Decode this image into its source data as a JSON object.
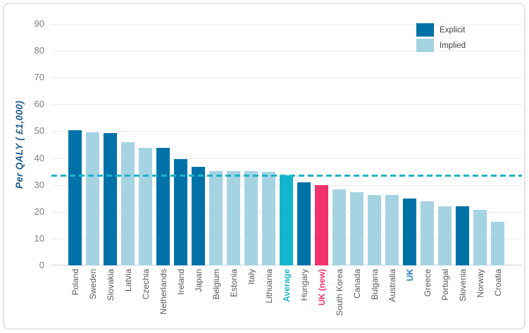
{
  "chart_data": {
    "type": "bar",
    "ylabel": "Per QALY ( £1,000)",
    "ylim": [
      0,
      90
    ],
    "ytick_step": 10,
    "grid": true,
    "legend_position": "top-right",
    "legend": [
      {
        "label": "Explicit",
        "color": "#0072a8"
      },
      {
        "label": "Implied",
        "color": "#a5d3e2"
      }
    ],
    "average_line": {
      "value": 33.6,
      "color": "#1cb4cb",
      "style": "dashed"
    },
    "bar_colors": {
      "explicit": "#0072a8",
      "implied": "#a5d3e2",
      "average": "#12b5cc",
      "highlight": "#f0316c"
    },
    "default_label_color": "#595959",
    "bars": [
      {
        "label": "Poland",
        "value": 50.5,
        "type": "explicit"
      },
      {
        "label": "Sweden",
        "value": 49.5,
        "type": "implied"
      },
      {
        "label": "Slovakia",
        "value": 49.3,
        "type": "explicit"
      },
      {
        "label": "Latvia",
        "value": 46.0,
        "type": "implied"
      },
      {
        "label": "Czechia",
        "value": 43.8,
        "type": "implied"
      },
      {
        "label": "Netherlands",
        "value": 43.8,
        "type": "explicit"
      },
      {
        "label": "Ireland",
        "value": 39.5,
        "type": "explicit"
      },
      {
        "label": "Japan",
        "value": 36.8,
        "type": "explicit"
      },
      {
        "label": "Belgium",
        "value": 35.2,
        "type": "implied"
      },
      {
        "label": "Estonia",
        "value": 35.2,
        "type": "implied"
      },
      {
        "label": "Italy",
        "value": 35.2,
        "type": "implied"
      },
      {
        "label": "Lithuania",
        "value": 35.0,
        "type": "implied"
      },
      {
        "label": "Average",
        "value": 33.6,
        "type": "average",
        "label_color": "#1cb4cb",
        "label_bold": true
      },
      {
        "label": "Hungary",
        "value": 31.0,
        "type": "explicit"
      },
      {
        "label": "UK (new)",
        "value": 30.0,
        "type": "highlight",
        "label_color": "#f0316c",
        "label_bold": true
      },
      {
        "label": "South Korea",
        "value": 28.3,
        "type": "implied"
      },
      {
        "label": "Canada",
        "value": 27.4,
        "type": "implied"
      },
      {
        "label": "Bulgaria",
        "value": 26.2,
        "type": "implied"
      },
      {
        "label": "Australia",
        "value": 26.2,
        "type": "implied"
      },
      {
        "label": "UK",
        "value": 25.0,
        "type": "explicit",
        "label_color": "#1b7ec3",
        "label_bold": true
      },
      {
        "label": "Greece",
        "value": 23.8,
        "type": "implied"
      },
      {
        "label": "Portugal",
        "value": 22.0,
        "type": "implied"
      },
      {
        "label": "Slovenia",
        "value": 22.0,
        "type": "explicit"
      },
      {
        "label": "Norway",
        "value": 20.7,
        "type": "implied"
      },
      {
        "label": "Croatia",
        "value": 16.4,
        "type": "implied"
      }
    ]
  }
}
